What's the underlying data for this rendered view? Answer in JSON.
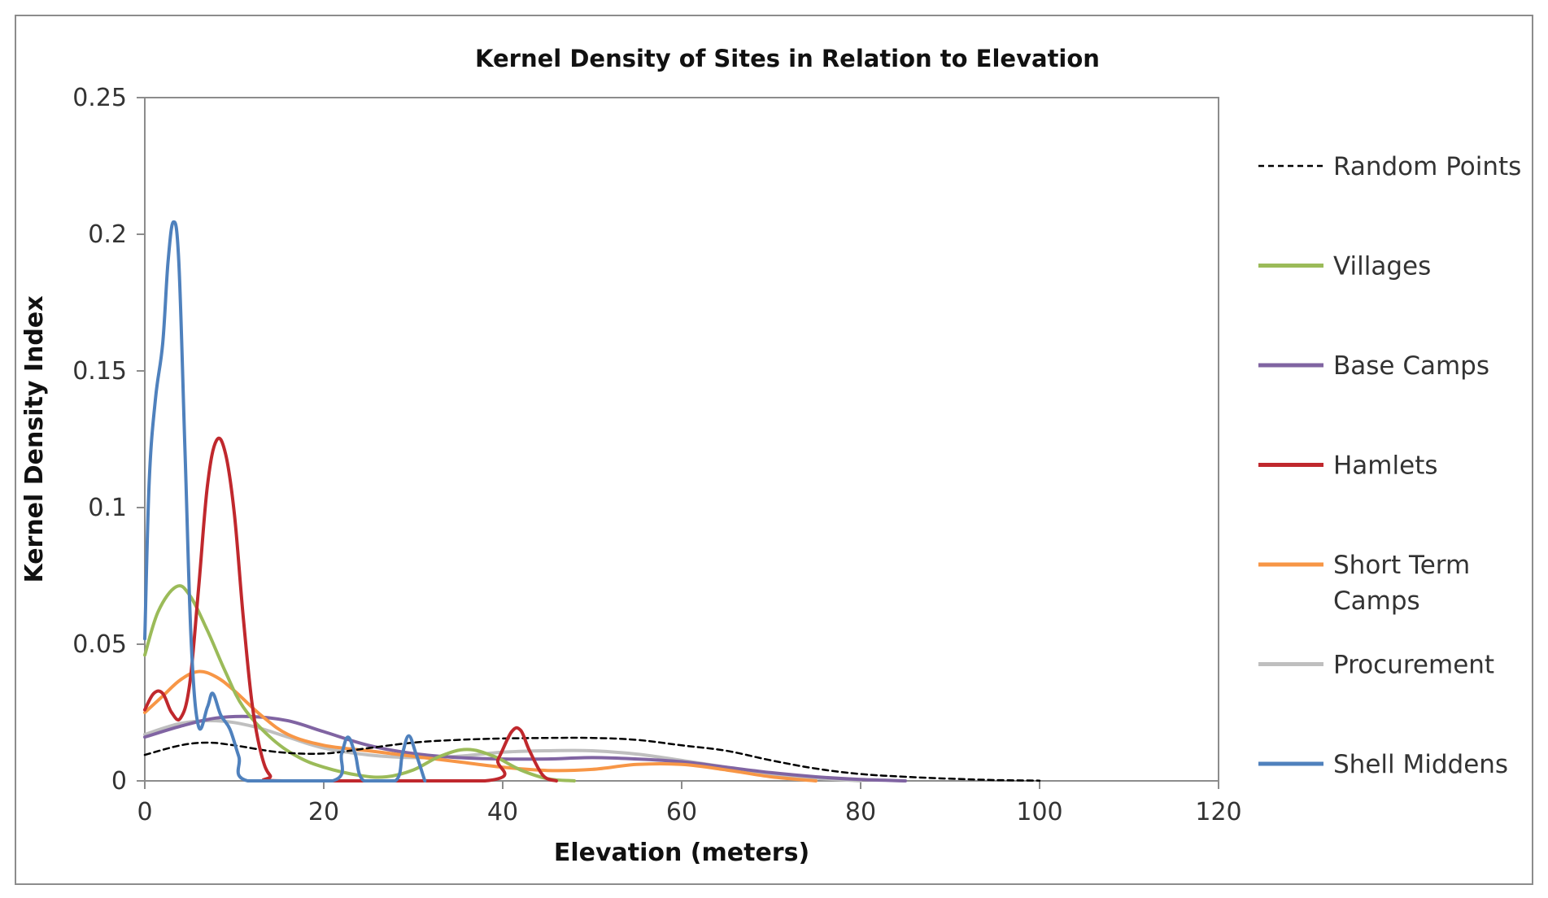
{
  "chart_data": {
    "type": "line",
    "title": "Kernel Density of Sites in Relation to Elevation",
    "xlabel": "Elevation (meters)",
    "ylabel": "Kernel Density Index",
    "xlim": [
      0,
      120
    ],
    "ylim": [
      0,
      0.25
    ],
    "xticks": [
      0,
      20,
      40,
      60,
      80,
      100,
      120
    ],
    "xtick_labels": [
      "0",
      "20",
      "40",
      "60",
      "80",
      "100",
      "120"
    ],
    "yticks": [
      0,
      0.05,
      0.1,
      0.15,
      0.2,
      0.25
    ],
    "ytick_labels": [
      "0",
      "0.05",
      "0.1",
      "0.15",
      "0.2",
      "0.25"
    ],
    "grid": false,
    "legend_position": "right",
    "series": [
      {
        "name": "Random Points",
        "color": "#000000",
        "dash": true,
        "points": [
          [
            0,
            0.0095
          ],
          [
            4,
            0.013
          ],
          [
            7,
            0.014
          ],
          [
            10,
            0.013
          ],
          [
            15,
            0.0105
          ],
          [
            20,
            0.01
          ],
          [
            25,
            0.012
          ],
          [
            30,
            0.014
          ],
          [
            35,
            0.015
          ],
          [
            40,
            0.0155
          ],
          [
            45,
            0.0157
          ],
          [
            50,
            0.0157
          ],
          [
            55,
            0.015
          ],
          [
            60,
            0.013
          ],
          [
            65,
            0.011
          ],
          [
            70,
            0.0075
          ],
          [
            75,
            0.0045
          ],
          [
            80,
            0.0025
          ],
          [
            85,
            0.0015
          ],
          [
            90,
            0.0008
          ],
          [
            95,
            0.0003
          ],
          [
            100,
            0.0001
          ]
        ]
      },
      {
        "name": "Villages",
        "color": "#9BBB59",
        "dash": false,
        "points": [
          [
            0,
            0.046
          ],
          [
            1.5,
            0.062
          ],
          [
            3.5,
            0.071
          ],
          [
            5,
            0.068
          ],
          [
            7,
            0.055
          ],
          [
            9,
            0.04
          ],
          [
            11,
            0.027
          ],
          [
            14,
            0.016
          ],
          [
            17,
            0.009
          ],
          [
            20,
            0.005
          ],
          [
            24,
            0.002
          ],
          [
            27,
            0.0015
          ],
          [
            30,
            0.004
          ],
          [
            33,
            0.009
          ],
          [
            36,
            0.0115
          ],
          [
            39,
            0.009
          ],
          [
            42,
            0.004
          ],
          [
            45,
            0.0008
          ],
          [
            48,
            0
          ]
        ]
      },
      {
        "name": "Base Camps",
        "color": "#8064A2",
        "dash": false,
        "points": [
          [
            0,
            0.016
          ],
          [
            4,
            0.02
          ],
          [
            8,
            0.023
          ],
          [
            12,
            0.0235
          ],
          [
            16,
            0.022
          ],
          [
            20,
            0.018
          ],
          [
            25,
            0.013
          ],
          [
            30,
            0.01
          ],
          [
            35,
            0.0085
          ],
          [
            40,
            0.008
          ],
          [
            45,
            0.008
          ],
          [
            50,
            0.0085
          ],
          [
            55,
            0.008
          ],
          [
            60,
            0.007
          ],
          [
            65,
            0.005
          ],
          [
            70,
            0.003
          ],
          [
            75,
            0.0015
          ],
          [
            80,
            0.0005
          ],
          [
            85,
            0
          ]
        ]
      },
      {
        "name": "Hamlets",
        "color": "#C0282D",
        "dash": false,
        "points": [
          [
            0,
            0.026
          ],
          [
            1,
            0.032
          ],
          [
            2,
            0.032
          ],
          [
            3,
            0.025
          ],
          [
            4,
            0.023
          ],
          [
            5,
            0.035
          ],
          [
            6,
            0.07
          ],
          [
            7,
            0.108
          ],
          [
            8,
            0.1245
          ],
          [
            9,
            0.12
          ],
          [
            10,
            0.098
          ],
          [
            11,
            0.06
          ],
          [
            12,
            0.028
          ],
          [
            13,
            0.01
          ],
          [
            14,
            0.002
          ],
          [
            15.5,
            0
          ],
          [
            38,
            0
          ],
          [
            39.5,
            0.008
          ],
          [
            41,
            0.018
          ],
          [
            42,
            0.0185
          ],
          [
            43,
            0.011
          ],
          [
            44.5,
            0.002
          ],
          [
            46,
            0
          ]
        ]
      },
      {
        "name": "Short Term Camps",
        "color": "#F79646",
        "dash": false,
        "points": [
          [
            0,
            0.025
          ],
          [
            2,
            0.031
          ],
          [
            4,
            0.037
          ],
          [
            6,
            0.04
          ],
          [
            8,
            0.038
          ],
          [
            10,
            0.033
          ],
          [
            13,
            0.024
          ],
          [
            16,
            0.017
          ],
          [
            20,
            0.013
          ],
          [
            25,
            0.011
          ],
          [
            30,
            0.009
          ],
          [
            35,
            0.007
          ],
          [
            40,
            0.005
          ],
          [
            45,
            0.0038
          ],
          [
            50,
            0.0042
          ],
          [
            55,
            0.006
          ],
          [
            60,
            0.006
          ],
          [
            65,
            0.004
          ],
          [
            70,
            0.0015
          ],
          [
            75,
            0
          ]
        ]
      },
      {
        "name": "Procurement",
        "color": "#BFBFBF",
        "dash": false,
        "points": [
          [
            0,
            0.017
          ],
          [
            4,
            0.021
          ],
          [
            8,
            0.022
          ],
          [
            12,
            0.02
          ],
          [
            16,
            0.016
          ],
          [
            20,
            0.012
          ],
          [
            25,
            0.0095
          ],
          [
            30,
            0.0085
          ],
          [
            35,
            0.009
          ],
          [
            40,
            0.0105
          ],
          [
            45,
            0.011
          ],
          [
            50,
            0.011
          ],
          [
            55,
            0.0098
          ],
          [
            60,
            0.0075
          ],
          [
            65,
            0.005
          ],
          [
            70,
            0.0025
          ],
          [
            75,
            0.001
          ],
          [
            80,
            0
          ]
        ]
      },
      {
        "name": "Shell Middens",
        "color": "#4F81BD",
        "dash": false,
        "points": [
          [
            0,
            0.052
          ],
          [
            0.5,
            0.11
          ],
          [
            1.2,
            0.14
          ],
          [
            2,
            0.16
          ],
          [
            2.6,
            0.19
          ],
          [
            3.2,
            0.2045
          ],
          [
            3.8,
            0.19
          ],
          [
            4.5,
            0.12
          ],
          [
            5.2,
            0.05
          ],
          [
            6,
            0.02
          ],
          [
            7,
            0.027
          ],
          [
            7.6,
            0.032
          ],
          [
            8.5,
            0.024
          ],
          [
            9.5,
            0.019
          ],
          [
            10.5,
            0.009
          ],
          [
            11.5,
            0
          ],
          [
            21,
            0
          ],
          [
            22,
            0.01
          ],
          [
            22.7,
            0.016
          ],
          [
            23.5,
            0.01
          ],
          [
            24.5,
            0
          ],
          [
            28,
            0
          ],
          [
            28.8,
            0.01
          ],
          [
            29.5,
            0.0165
          ],
          [
            30.3,
            0.01
          ],
          [
            31.3,
            0
          ]
        ]
      }
    ]
  }
}
